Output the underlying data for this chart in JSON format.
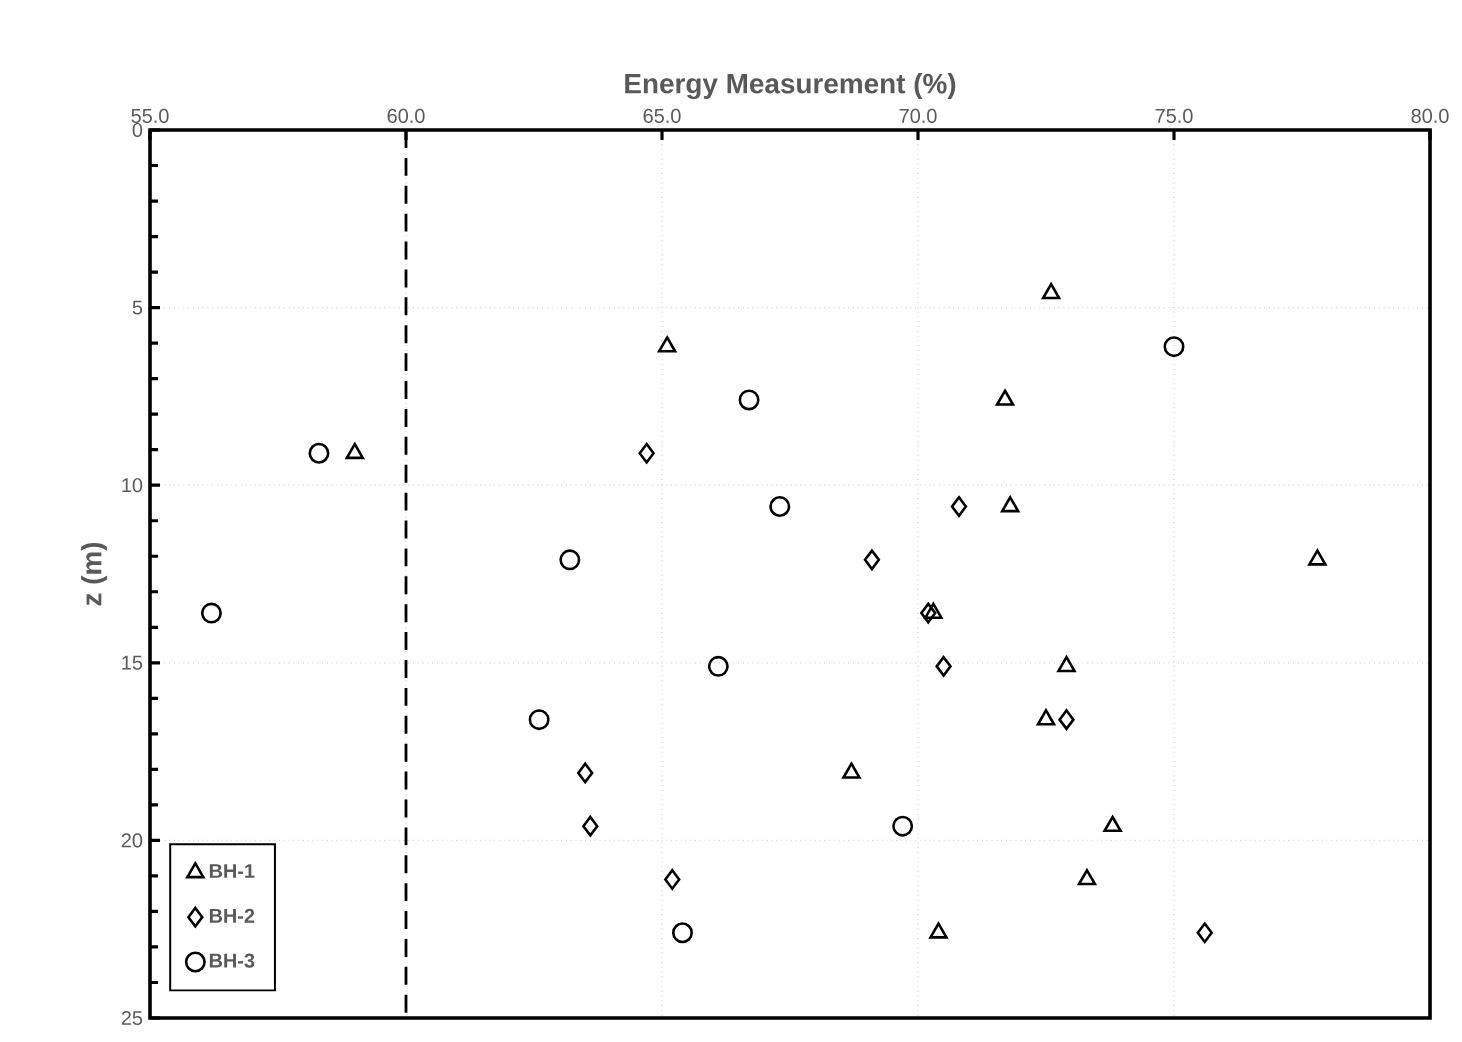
{
  "chart_data": {
    "type": "scatter",
    "xlabel": "Energy Measurement (%)",
    "ylabel": "z (m)",
    "xlim": [
      55,
      80
    ],
    "xticks": [
      {
        "value": 55,
        "label": "55.0"
      },
      {
        "value": 60,
        "label": "60.0"
      },
      {
        "value": 65,
        "label": "65.0"
      },
      {
        "value": 70,
        "label": "70.0"
      },
      {
        "value": 75,
        "label": "75.0"
      },
      {
        "value": 80,
        "label": "80.0"
      }
    ],
    "ylim": [
      25,
      0
    ],
    "yticks": [
      0,
      5,
      10,
      15,
      20,
      25
    ],
    "grid": true,
    "legend": "bottom left",
    "ref_lines": [
      {
        "axis": "x",
        "value": 60,
        "color": "#000000",
        "line_style": "dashed"
      }
    ],
    "series": [
      {
        "name": "BH-1",
        "color": "#000000",
        "marker": "triangle",
        "x": [
          72.6,
          65.1,
          71.7,
          59.0,
          71.8,
          77.8,
          70.3,
          72.9,
          72.5,
          68.7,
          73.8,
          73.3,
          70.4
        ],
        "values": [
          4.6,
          6.1,
          7.6,
          9.1,
          10.6,
          12.1,
          13.6,
          15.1,
          16.6,
          18.1,
          19.6,
          21.1,
          22.6
        ]
      },
      {
        "name": "BH-2",
        "color": "#000000",
        "marker": "diamond",
        "x": [
          64.7,
          70.8,
          69.1,
          70.2,
          70.5,
          72.9,
          63.5,
          63.6,
          65.2,
          75.6
        ],
        "values": [
          9.1,
          10.6,
          12.1,
          13.6,
          15.1,
          16.6,
          18.1,
          19.6,
          21.1,
          22.6
        ]
      },
      {
        "name": "BH-3",
        "color": "#000000",
        "marker": "circle",
        "x": [
          75.0,
          66.7,
          58.3,
          67.3,
          63.2,
          56.2,
          66.1,
          62.6,
          69.7,
          65.4
        ],
        "values": [
          6.1,
          7.6,
          9.1,
          10.6,
          12.1,
          13.6,
          15.1,
          16.6,
          19.6,
          22.6
        ]
      }
    ]
  }
}
